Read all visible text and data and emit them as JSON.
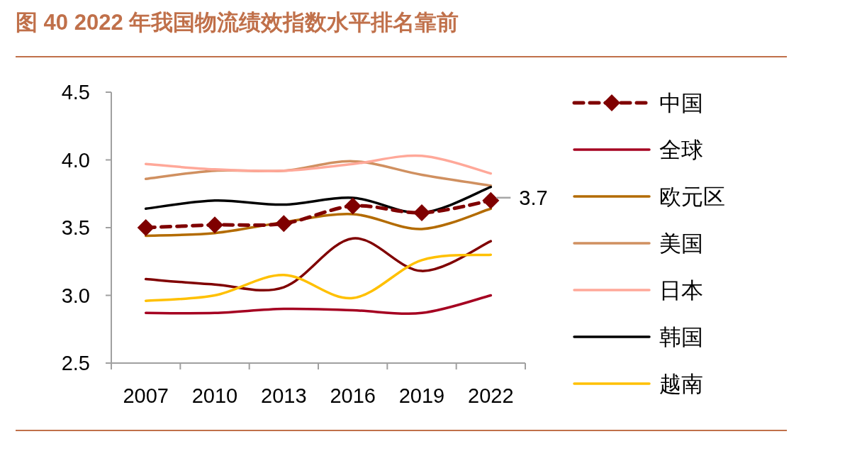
{
  "chart_data": {
    "type": "line",
    "title": "图 40 2022 年我国物流绩效指数水平排名靠前",
    "categories": [
      "2007",
      "2010",
      "2013",
      "2016",
      "2019",
      "2022"
    ],
    "ylim": [
      2.5,
      4.5
    ],
    "yticks": [
      {
        "value": 2.5,
        "label": "2.5"
      },
      {
        "value": 3,
        "label": "3.0"
      },
      {
        "value": 3.5,
        "label": "3.5"
      },
      {
        "value": 4,
        "label": "4.0"
      },
      {
        "value": 4.5,
        "label": "4.5"
      }
    ],
    "grid": false,
    "legend": "right",
    "series": [
      {
        "name": "中国",
        "color": "#7f0000",
        "line_style": "dashed",
        "marker": "diamond",
        "values": [
          3.5,
          3.52,
          3.53,
          3.66,
          3.61,
          3.7
        ],
        "value_labels": [
          null,
          null,
          null,
          null,
          null,
          "3.7"
        ]
      },
      {
        "name": "全球",
        "color": "#a50021",
        "values": [
          2.87,
          2.87,
          2.9,
          2.89,
          2.87,
          3.0
        ]
      },
      {
        "color": "#800000",
        "values": [
          3.12,
          3.08,
          3.06,
          3.42,
          3.18,
          3.4
        ]
      },
      {
        "name": "欧元区",
        "color": "#b36b00",
        "values": [
          3.44,
          3.46,
          3.54,
          3.6,
          3.49,
          3.64
        ]
      },
      {
        "name": "美国",
        "color": "#d09060",
        "values": [
          3.86,
          3.92,
          3.92,
          3.99,
          3.89,
          3.81
        ]
      },
      {
        "name": "日本",
        "color": "#ffa899",
        "values": [
          3.97,
          3.93,
          3.92,
          3.97,
          4.03,
          3.9
        ]
      },
      {
        "name": "韩国",
        "color": "#000000",
        "values": [
          3.64,
          3.7,
          3.67,
          3.72,
          3.61,
          3.8
        ]
      },
      {
        "name": "越南",
        "color": "#ffc000",
        "values": [
          2.96,
          3.0,
          3.15,
          2.98,
          3.26,
          3.3
        ]
      }
    ]
  }
}
